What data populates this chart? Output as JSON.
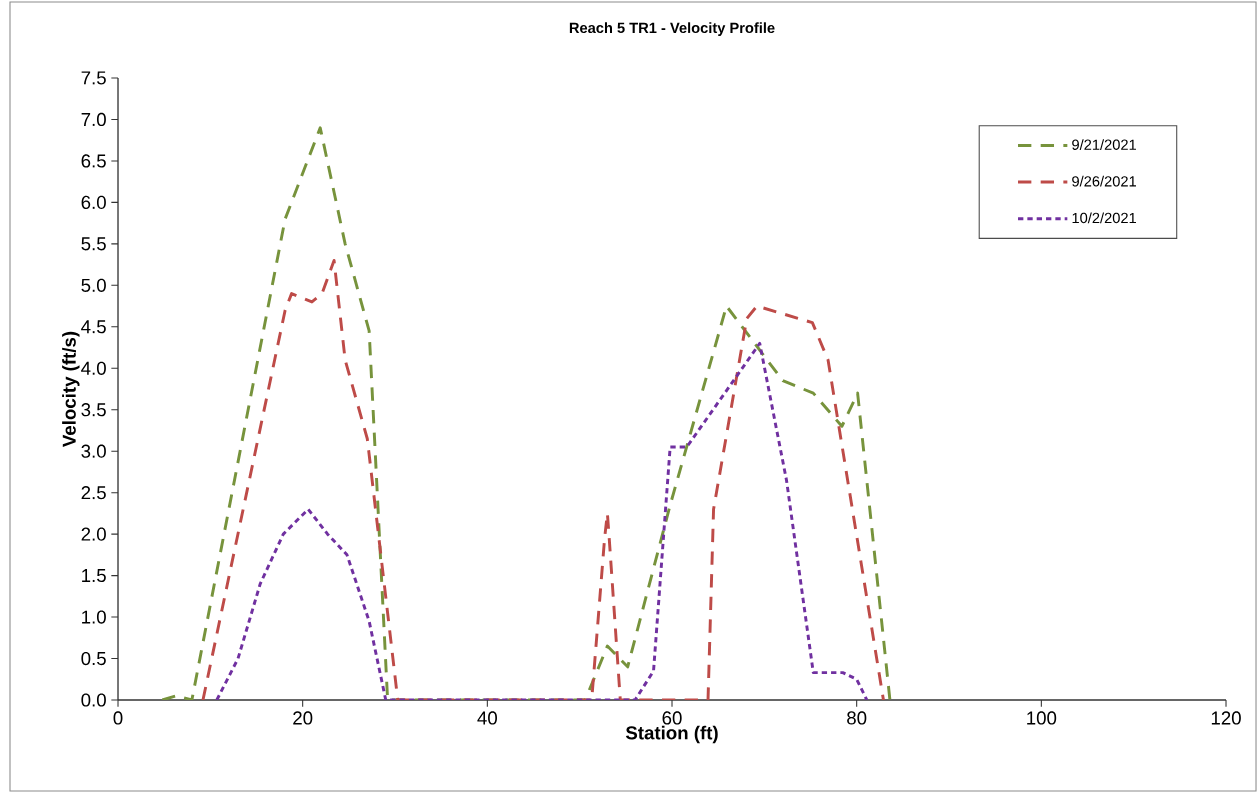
{
  "chart_data": {
    "type": "line",
    "title": "Reach 5 TR1 - Velocity Profile",
    "xlabel": "Station (ft)",
    "ylabel": "Velocity (ft/s)",
    "xlim": [
      0,
      120
    ],
    "xticks": [
      0,
      20,
      40,
      60,
      80,
      100,
      120
    ],
    "ylim": [
      0,
      7.5
    ],
    "yticks": [
      {
        "value": 0,
        "label": "0.0"
      },
      {
        "value": 0.5,
        "label": "0.5"
      },
      {
        "value": 1,
        "label": "1.0"
      },
      {
        "value": 1.5,
        "label": "1.5"
      },
      {
        "value": 2,
        "label": "2.0"
      },
      {
        "value": 2.5,
        "label": "2.5"
      },
      {
        "value": 3,
        "label": "3.0"
      },
      {
        "value": 3.5,
        "label": "3.5"
      },
      {
        "value": 4,
        "label": "4.0"
      },
      {
        "value": 4.5,
        "label": "4.5"
      },
      {
        "value": 5,
        "label": "5.0"
      },
      {
        "value": 5.5,
        "label": "5.5"
      },
      {
        "value": 6,
        "label": "6.0"
      },
      {
        "value": 6.5,
        "label": "6.5"
      },
      {
        "value": 7,
        "label": "7.0"
      },
      {
        "value": 7.5,
        "label": "7.5"
      }
    ],
    "grid": false,
    "legend": "top right",
    "marker": "none",
    "series": [
      {
        "name": "9/21/2021",
        "color": "#77933c",
        "line_style": "dashed",
        "x": [
          4.8,
          6.3,
          8.0,
          18.1,
          21.9,
          24.6,
          27.2,
          29.2,
          50.6,
          53.0,
          55.2,
          59.8,
          65.9,
          72.0,
          75.3,
          78.4,
          80.1,
          83.6
        ],
        "values": [
          0,
          0.05,
          0,
          5.8,
          6.9,
          5.5,
          4.45,
          0,
          0,
          0.65,
          0.4,
          2.35,
          4.75,
          3.85,
          3.7,
          3.3,
          3.7,
          0
        ]
      },
      {
        "name": "9/26/2021",
        "color": "#be4b48",
        "line_style": "dashed",
        "x": [
          9.2,
          18.1,
          18.8,
          21.0,
          22.1,
          23.4,
          24.6,
          27.0,
          30.3,
          51.3,
          52.7,
          53.0,
          53.2,
          54.4,
          63.9,
          64.5,
          68.1,
          69.2,
          75.2,
          76.9,
          82.9
        ],
        "values": [
          0,
          4.7,
          4.9,
          4.8,
          4.9,
          5.3,
          4.1,
          3.15,
          0,
          0,
          1.95,
          2.25,
          1.95,
          0,
          0,
          2.3,
          4.6,
          4.75,
          4.55,
          4.1,
          0
        ]
      },
      {
        "name": "10/2/2021",
        "color": "#7030a0",
        "line_style": "dotted",
        "x": [
          10.7,
          13.0,
          15.4,
          17.9,
          20.6,
          22.7,
          24.8,
          27.2,
          29.0,
          56.0,
          58.0,
          59.8,
          61.6,
          69.5,
          72.4,
          75.3,
          78.5,
          80.0,
          81.1
        ],
        "values": [
          0,
          0.5,
          1.4,
          2.0,
          2.3,
          2.0,
          1.75,
          0.95,
          0,
          0,
          0.35,
          3.05,
          3.05,
          4.3,
          2.65,
          0.33,
          0.33,
          0.25,
          0
        ]
      }
    ]
  }
}
